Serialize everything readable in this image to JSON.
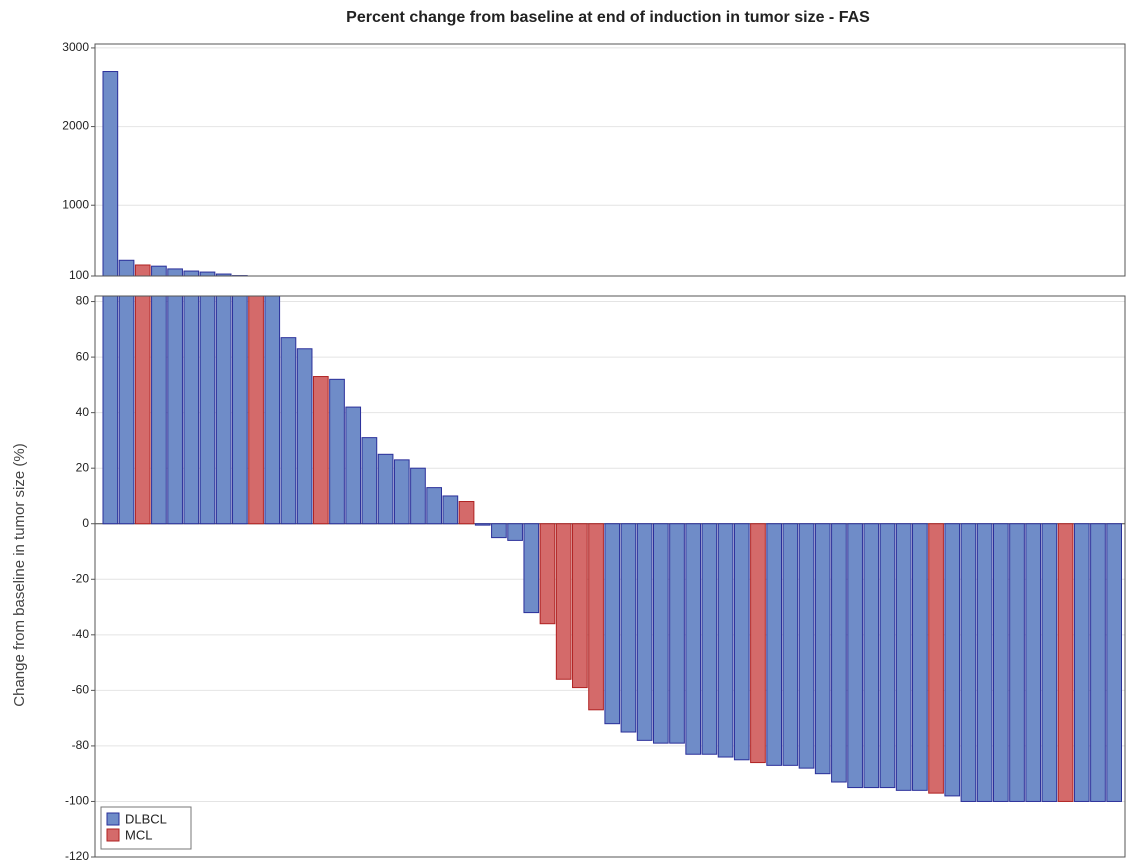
{
  "chart_data": {
    "type": "waterfall",
    "title": "Percent change from baseline at end of induction in tumor size - FAS",
    "y_label": "Change from baseline in tumor size (%)",
    "upper_ylim": [
      100,
      3050
    ],
    "upper_yticks": [
      100,
      1000,
      2000,
      3000
    ],
    "ylim": [
      -120,
      82
    ],
    "yticks": [
      -120,
      -100,
      -80,
      -60,
      -40,
      -20,
      0,
      20,
      40,
      60,
      80
    ],
    "grid": true,
    "legend": "bottom-left",
    "series": [
      {
        "name": "DLBCL",
        "color": "#6f8cc8",
        "edge": "#2a2f9a",
        "values": [
          2700,
          300,
          null,
          225,
          190,
          163,
          150,
          125,
          105,
          null,
          88,
          67,
          63,
          null,
          52,
          42,
          31,
          25,
          23,
          20,
          13,
          10,
          null,
          -0.5,
          -5,
          -6,
          -32,
          null,
          null,
          null,
          null,
          -72,
          -75,
          -78,
          -79,
          -79,
          -83,
          -83,
          -84,
          -85,
          null,
          -87,
          -87,
          -88,
          -90,
          -93,
          -95,
          -95,
          -95,
          -96,
          -96,
          null,
          -98,
          -100,
          -100,
          -100,
          -100,
          -100,
          -100,
          null,
          -100,
          -100,
          -100
        ]
      },
      {
        "name": "MCL",
        "color": "#d46a6a",
        "edge": "#b02222",
        "values": [
          null,
          null,
          240,
          null,
          null,
          null,
          null,
          null,
          null,
          95,
          null,
          null,
          null,
          53,
          null,
          null,
          null,
          null,
          null,
          null,
          null,
          null,
          8,
          null,
          null,
          null,
          null,
          -36,
          -56,
          -59,
          -67,
          null,
          null,
          null,
          null,
          null,
          null,
          null,
          null,
          null,
          -86,
          null,
          null,
          null,
          null,
          null,
          null,
          null,
          null,
          null,
          null,
          -97,
          null,
          null,
          null,
          null,
          null,
          null,
          null,
          -100,
          null,
          null,
          null
        ]
      }
    ]
  }
}
